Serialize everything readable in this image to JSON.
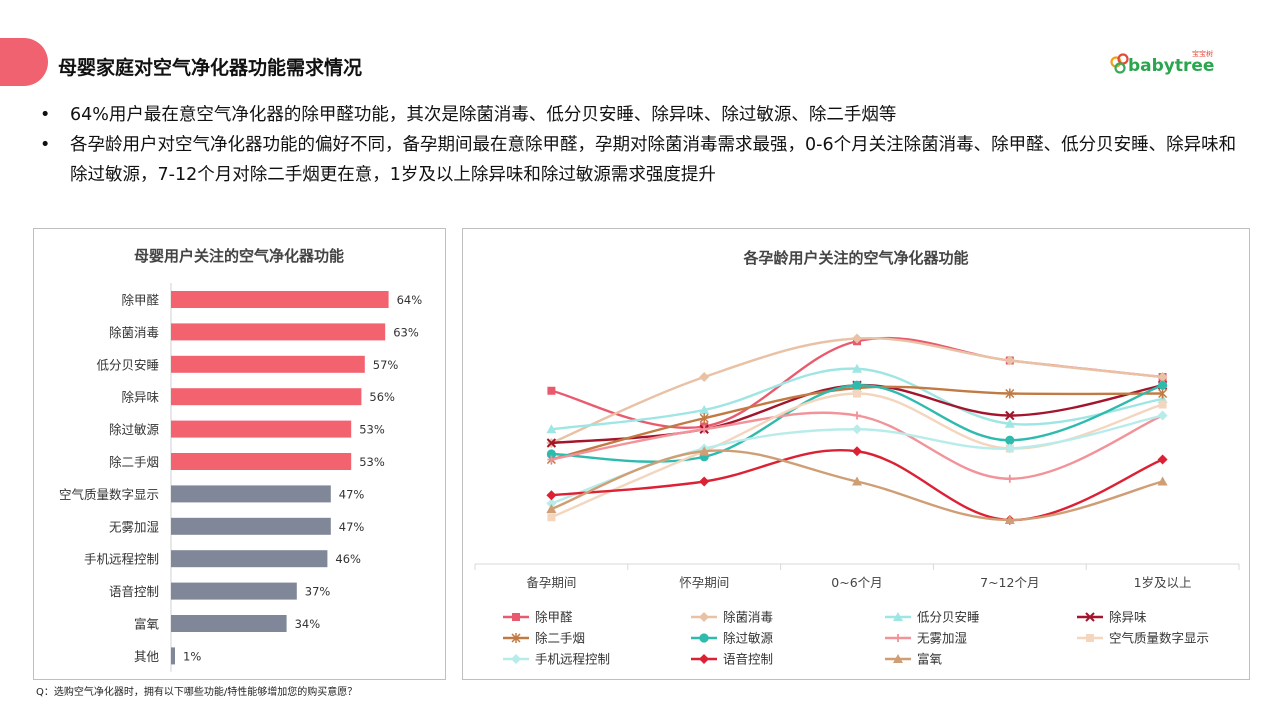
{
  "header": {
    "title": "母婴家庭对空气净化器功能需求情况",
    "logo_text": "babytree",
    "logo_cn": "宝宝树",
    "accent": "#f0626f"
  },
  "bullets": [
    "64%用户最在意空气净化器的除甲醛功能，其次是除菌消毒、低分贝安睡、除异味、除过敏源、除二手烟等",
    "各孕龄用户对空气净化器功能的偏好不同，备孕期间最在意除甲醛，孕期对除菌消毒需求最强，0-6个月关注除菌消毒、除甲醛、低分贝安睡、除异味和除过敏源，7-12个月对除二手烟更在意，1岁及以上除异味和除过敏源需求强度提升"
  ],
  "footnote": "Q：选购空气净化器时，拥有以下哪些功能/特性能够增加您的购买意愿？",
  "chart_data": [
    {
      "type": "bar",
      "orientation": "horizontal",
      "title": "母婴用户关注的空气净化器功能",
      "categories": [
        "除甲醛",
        "除菌消毒",
        "低分贝安睡",
        "除异味",
        "除过敏源",
        "除二手烟",
        "空气质量数字显示",
        "无雾加湿",
        "手机远程控制",
        "语音控制",
        "富氧",
        "其他"
      ],
      "values": [
        64,
        63,
        57,
        56,
        53,
        53,
        47,
        47,
        46,
        37,
        34,
        1
      ],
      "labels": [
        "64%",
        "63%",
        "57%",
        "56%",
        "53%",
        "53%",
        "47%",
        "47%",
        "46%",
        "37%",
        "34%",
        "1%"
      ],
      "highlight_count": 6,
      "highlight_color": "#f2636f",
      "other_color": "#7f8798",
      "xlim": [
        0,
        100
      ]
    },
    {
      "type": "line",
      "title": "各孕龄用户关注的空气净化器功能",
      "categories": [
        "备孕期间",
        "怀孕期间",
        "0~6个月",
        "7~12个月",
        "1岁及以上"
      ],
      "ylim": [
        0,
        100
      ],
      "legend_position": "bottom",
      "series": [
        {
          "name": "除甲醛",
          "color": "#ea5a6e",
          "marker": "square",
          "values": [
            63,
            50,
            81,
            74,
            68
          ]
        },
        {
          "name": "除菌消毒",
          "color": "#e9c2a6",
          "marker": "diamond",
          "values": [
            44,
            68,
            82,
            74,
            68
          ]
        },
        {
          "name": "低分贝安睡",
          "color": "#9ee6e3",
          "marker": "triangle",
          "values": [
            49,
            56,
            71,
            51,
            60
          ]
        },
        {
          "name": "除异味",
          "color": "#a3152c",
          "marker": "x",
          "values": [
            44,
            49,
            65,
            54,
            65
          ]
        },
        {
          "name": "除二手烟",
          "color": "#c17a43",
          "marker": "star",
          "values": [
            38,
            53,
            64,
            62,
            62
          ]
        },
        {
          "name": "除过敏源",
          "color": "#2ebbad",
          "marker": "circle",
          "values": [
            40,
            39,
            65,
            45,
            65
          ]
        },
        {
          "name": "无雾加湿",
          "color": "#f29299",
          "marker": "plus",
          "values": [
            38,
            49,
            54,
            31,
            54
          ]
        },
        {
          "name": "空气质量数字显示",
          "color": "#f4d5bd",
          "marker": "square",
          "values": [
            17,
            41,
            62,
            42,
            58
          ]
        },
        {
          "name": "手机远程控制",
          "color": "#b8ecea",
          "marker": "diamond",
          "values": [
            22,
            42,
            49,
            42,
            54
          ]
        },
        {
          "name": "语音控制",
          "color": "#dd2135",
          "marker": "diamond",
          "values": [
            25,
            30,
            41,
            16,
            38
          ]
        },
        {
          "name": "富氧",
          "color": "#cf9e74",
          "marker": "triangle",
          "values": [
            20,
            41,
            30,
            16,
            30
          ]
        }
      ]
    }
  ]
}
